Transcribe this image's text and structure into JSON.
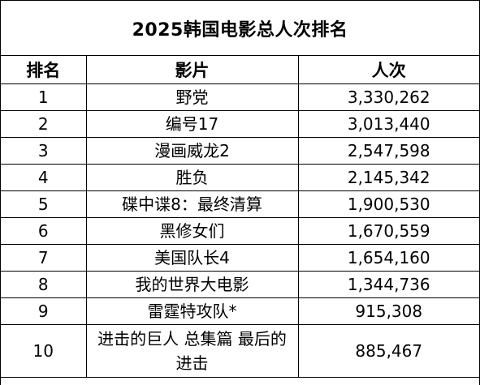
{
  "title": "2025韩国电影总人次排名",
  "headers": {
    "rank": "排名",
    "film": "影片",
    "admissions": "人次"
  },
  "rows": [
    {
      "rank": "1",
      "film": "野党",
      "admissions": "3,330,262"
    },
    {
      "rank": "2",
      "film": "编号17",
      "admissions": "3,013,440"
    },
    {
      "rank": "3",
      "film": "漫画威龙2",
      "admissions": "2,547,598"
    },
    {
      "rank": "4",
      "film": "胜负",
      "admissions": "2,145,342"
    },
    {
      "rank": "5",
      "film": "碟中谍8：最终清算",
      "admissions": "1,900,530"
    },
    {
      "rank": "6",
      "film": "黑修女们",
      "admissions": "1,670,559"
    },
    {
      "rank": "7",
      "film": "美国队长4",
      "admissions": "1,654,160"
    },
    {
      "rank": "8",
      "film": "我的世界大电影",
      "admissions": "1,344,736"
    },
    {
      "rank": "9",
      "film": "雷霆特攻队*",
      "admissions": "915,308"
    },
    {
      "rank": "10",
      "film": "进击的巨人 总集篇 最后的进击",
      "admissions": "885,467"
    }
  ]
}
